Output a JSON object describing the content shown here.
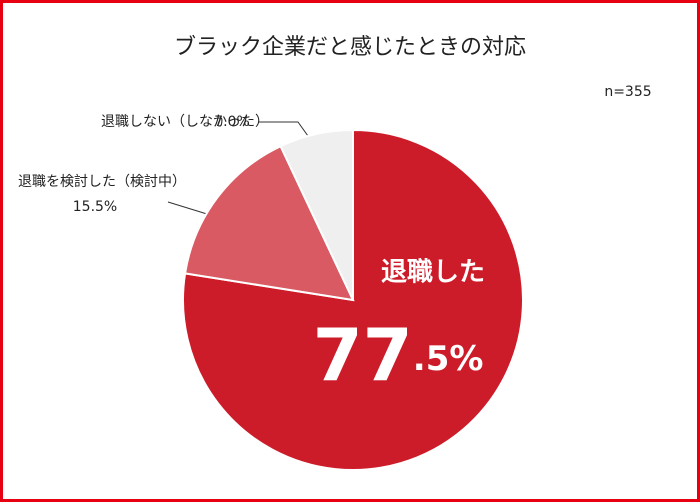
{
  "chart_data": {
    "type": "pie",
    "title": "ブラック企業だと感じたときの対応",
    "note": "n=355",
    "categories": [
      "退職した",
      "退職を検討した（検討中）",
      "退職しない（しなかった）"
    ],
    "values": [
      77.5,
      15.5,
      7.0
    ],
    "value_labels": [
      "77.5%",
      "15.5%",
      "7.0%"
    ],
    "colors": [
      "#cd1c29",
      "#d95a62",
      "#efefef"
    ]
  }
}
